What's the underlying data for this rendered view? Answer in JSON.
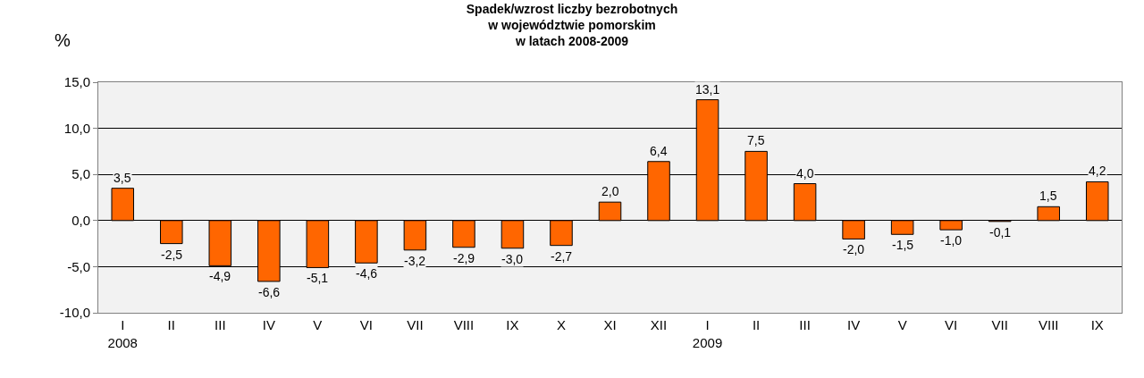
{
  "chart_data": {
    "type": "bar",
    "title": "Spadek/wzrost liczby bezrobotnych\nw województwie pomorskim\nw latach 2008-2009",
    "ylabel": "%",
    "categories": [
      "I\n2008",
      "II",
      "III",
      "IV",
      "V",
      "VI",
      "VII",
      "VIII",
      "IX",
      "X",
      "XI",
      "XII",
      "I\n2009",
      "II",
      "III",
      "IV",
      "V",
      "VI",
      "VII",
      "VIII",
      "IX"
    ],
    "values": [
      3.5,
      -2.5,
      -4.9,
      -6.6,
      -5.1,
      -4.6,
      -3.2,
      -2.9,
      -3.0,
      -2.7,
      2.0,
      6.4,
      13.1,
      7.5,
      4.0,
      -2.0,
      -1.5,
      -1.0,
      -0.1,
      1.5,
      4.2
    ],
    "value_labels": [
      "3,5",
      "-2,5",
      "-4,9",
      "-6,6",
      "-5,1",
      "-4,6",
      "-3,2",
      "-2,9",
      "-3,0",
      "-2,7",
      "2,0",
      "6,4",
      "13,1",
      "7,5",
      "4,0",
      "-2,0",
      "-1,5",
      "-1,0",
      "-0,1",
      "1,5",
      "4,2"
    ],
    "color": "#ff6600",
    "ylim": [
      -10,
      15
    ],
    "yticks": [
      {
        "value": -10,
        "label": "-10,0"
      },
      {
        "value": -5,
        "label": "-5,0"
      },
      {
        "value": 0,
        "label": "0,0"
      },
      {
        "value": 5,
        "label": "5,0"
      },
      {
        "value": 10,
        "label": "10,0"
      },
      {
        "value": 15,
        "label": "15,0"
      }
    ],
    "grid": "y",
    "legend": false
  }
}
